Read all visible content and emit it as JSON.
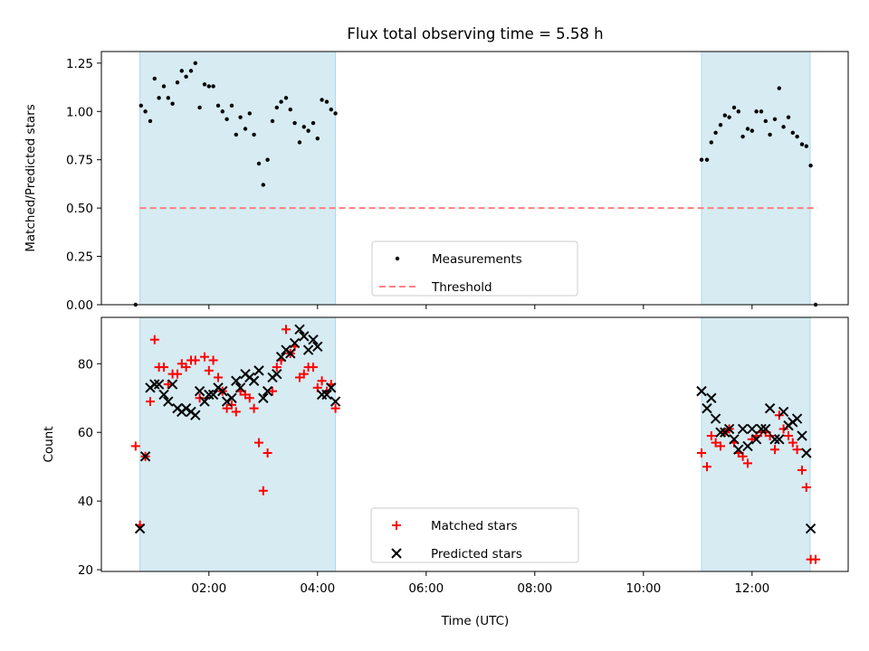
{
  "title": "Flux total observing time = 5.58 h",
  "xlabel": "Time (UTC)",
  "xticks": [
    {
      "h": 2,
      "label": "02:00"
    },
    {
      "h": 4,
      "label": "04:00"
    },
    {
      "h": 6,
      "label": "06:00"
    },
    {
      "h": 8,
      "label": "08:00"
    },
    {
      "h": 10,
      "label": "10:00"
    },
    {
      "h": 12,
      "label": "12:00"
    }
  ],
  "xlim": [
    0.02,
    13.77
  ],
  "colors": {
    "band": "#add8e6",
    "matched": "#ff0000",
    "predicted": "#000000",
    "threshold": "#ff7f7f",
    "measure": "#000000"
  },
  "chart_data": [
    {
      "type": "scatter",
      "ylabel": "Matched/Predicted stars",
      "ylim": [
        0,
        1.31
      ],
      "yticks": [
        "0.00",
        "0.25",
        "0.50",
        "0.75",
        "1.00",
        "1.25"
      ],
      "bands": [
        [
          0.73,
          4.33
        ],
        [
          11.07,
          13.07
        ]
      ],
      "threshold": 0.5,
      "threshold_range": [
        0.73,
        13.2
      ],
      "legend": {
        "position": "lower center",
        "entries": [
          "Measurements",
          "Threshold"
        ]
      },
      "series": [
        {
          "name": "Measurements",
          "points": [
            [
              0.65,
              0.0
            ],
            [
              0.75,
              1.03
            ],
            [
              0.83,
              1.0
            ],
            [
              0.92,
              0.95
            ],
            [
              1.0,
              1.17
            ],
            [
              1.08,
              1.07
            ],
            [
              1.17,
              1.13
            ],
            [
              1.25,
              1.07
            ],
            [
              1.33,
              1.04
            ],
            [
              1.42,
              1.15
            ],
            [
              1.5,
              1.21
            ],
            [
              1.58,
              1.18
            ],
            [
              1.67,
              1.21
            ],
            [
              1.75,
              1.25
            ],
            [
              1.83,
              1.02
            ],
            [
              1.92,
              1.14
            ],
            [
              2.0,
              1.13
            ],
            [
              2.08,
              1.13
            ],
            [
              2.17,
              1.03
            ],
            [
              2.25,
              1.0
            ],
            [
              2.33,
              0.96
            ],
            [
              2.42,
              1.03
            ],
            [
              2.5,
              0.88
            ],
            [
              2.58,
              0.97
            ],
            [
              2.67,
              0.91
            ],
            [
              2.75,
              0.99
            ],
            [
              2.83,
              0.88
            ],
            [
              2.92,
              0.73
            ],
            [
              3.0,
              0.62
            ],
            [
              3.08,
              0.75
            ],
            [
              3.17,
              0.95
            ],
            [
              3.25,
              1.02
            ],
            [
              3.33,
              1.05
            ],
            [
              3.42,
              1.07
            ],
            [
              3.5,
              1.01
            ],
            [
              3.58,
              0.94
            ],
            [
              3.67,
              0.84
            ],
            [
              3.75,
              0.92
            ],
            [
              3.83,
              0.9
            ],
            [
              3.92,
              0.94
            ],
            [
              4.0,
              0.86
            ],
            [
              4.08,
              1.06
            ],
            [
              4.17,
              1.05
            ],
            [
              4.25,
              1.01
            ],
            [
              4.33,
              0.99
            ],
            [
              11.07,
              0.75
            ],
            [
              11.17,
              0.75
            ],
            [
              11.25,
              0.84
            ],
            [
              11.33,
              0.89
            ],
            [
              11.42,
              0.93
            ],
            [
              11.5,
              0.98
            ],
            [
              11.58,
              0.97
            ],
            [
              11.67,
              1.02
            ],
            [
              11.75,
              1.0
            ],
            [
              11.83,
              0.87
            ],
            [
              11.92,
              0.91
            ],
            [
              12.0,
              0.9
            ],
            [
              12.08,
              1.0
            ],
            [
              12.17,
              1.0
            ],
            [
              12.25,
              0.95
            ],
            [
              12.33,
              0.88
            ],
            [
              12.42,
              0.96
            ],
            [
              12.5,
              1.12
            ],
            [
              12.58,
              0.92
            ],
            [
              12.67,
              0.97
            ],
            [
              12.75,
              0.89
            ],
            [
              12.83,
              0.87
            ],
            [
              12.92,
              0.83
            ],
            [
              13.0,
              0.82
            ],
            [
              13.08,
              0.72
            ],
            [
              13.17,
              0.0
            ]
          ]
        }
      ]
    },
    {
      "type": "scatter",
      "ylabel": "Count",
      "ylim": [
        19.5,
        93.5
      ],
      "yticks": [
        "20",
        "40",
        "60",
        "80"
      ],
      "bands": [
        [
          0.73,
          4.33
        ],
        [
          11.07,
          13.07
        ]
      ],
      "legend": {
        "position": "lower center",
        "entries": [
          "Matched stars",
          "Predicted stars"
        ]
      },
      "series": [
        {
          "name": "Matched stars",
          "marker": "plus",
          "points": [
            [
              0.65,
              56
            ],
            [
              0.73,
              33
            ],
            [
              0.83,
              53
            ],
            [
              0.92,
              69
            ],
            [
              1.0,
              87
            ],
            [
              1.08,
              79
            ],
            [
              1.17,
              79
            ],
            [
              1.25,
              74
            ],
            [
              1.33,
              77
            ],
            [
              1.42,
              77
            ],
            [
              1.5,
              80
            ],
            [
              1.58,
              79
            ],
            [
              1.67,
              81
            ],
            [
              1.75,
              81
            ],
            [
              1.83,
              70
            ],
            [
              1.92,
              82
            ],
            [
              2.0,
              78
            ],
            [
              2.08,
              81
            ],
            [
              2.17,
              76
            ],
            [
              2.25,
              72
            ],
            [
              2.33,
              67
            ],
            [
              2.42,
              68
            ],
            [
              2.5,
              66
            ],
            [
              2.58,
              72
            ],
            [
              2.67,
              71
            ],
            [
              2.75,
              70
            ],
            [
              2.83,
              67
            ],
            [
              2.92,
              57
            ],
            [
              3.0,
              43
            ],
            [
              3.08,
              54
            ],
            [
              3.17,
              72
            ],
            [
              3.25,
              79
            ],
            [
              3.33,
              81
            ],
            [
              3.42,
              90
            ],
            [
              3.5,
              83
            ],
            [
              3.58,
              85
            ],
            [
              3.67,
              76
            ],
            [
              3.75,
              77
            ],
            [
              3.83,
              79
            ],
            [
              3.92,
              79
            ],
            [
              4.0,
              73
            ],
            [
              4.08,
              75
            ],
            [
              4.17,
              72
            ],
            [
              4.25,
              74
            ],
            [
              4.33,
              67
            ],
            [
              11.07,
              54
            ],
            [
              11.17,
              50
            ],
            [
              11.25,
              59
            ],
            [
              11.33,
              57
            ],
            [
              11.42,
              56
            ],
            [
              11.5,
              60
            ],
            [
              11.58,
              61
            ],
            [
              11.67,
              57
            ],
            [
              11.75,
              54
            ],
            [
              11.83,
              53
            ],
            [
              11.92,
              51
            ],
            [
              12.0,
              58
            ],
            [
              12.08,
              59
            ],
            [
              12.17,
              60
            ],
            [
              12.25,
              60
            ],
            [
              12.33,
              59
            ],
            [
              12.42,
              55
            ],
            [
              12.5,
              65
            ],
            [
              12.58,
              61
            ],
            [
              12.67,
              59
            ],
            [
              12.75,
              57
            ],
            [
              12.83,
              55
            ],
            [
              12.92,
              49
            ],
            [
              13.0,
              44
            ],
            [
              13.08,
              23
            ],
            [
              13.17,
              23
            ]
          ]
        },
        {
          "name": "Predicted stars",
          "marker": "x",
          "points": [
            [
              0.73,
              32
            ],
            [
              0.83,
              53
            ],
            [
              0.92,
              73
            ],
            [
              1.0,
              74
            ],
            [
              1.08,
              74
            ],
            [
              1.17,
              71
            ],
            [
              1.25,
              69
            ],
            [
              1.33,
              74
            ],
            [
              1.42,
              67
            ],
            [
              1.5,
              66
            ],
            [
              1.58,
              67
            ],
            [
              1.67,
              66
            ],
            [
              1.75,
              65
            ],
            [
              1.83,
              72
            ],
            [
              1.92,
              69
            ],
            [
              2.0,
              71
            ],
            [
              2.08,
              71
            ],
            [
              2.17,
              73
            ],
            [
              2.25,
              72
            ],
            [
              2.33,
              69
            ],
            [
              2.42,
              70
            ],
            [
              2.5,
              75
            ],
            [
              2.58,
              73
            ],
            [
              2.67,
              77
            ],
            [
              2.75,
              76
            ],
            [
              2.83,
              75
            ],
            [
              2.92,
              78
            ],
            [
              3.0,
              70
            ],
            [
              3.08,
              72
            ],
            [
              3.17,
              76
            ],
            [
              3.25,
              77
            ],
            [
              3.33,
              82
            ],
            [
              3.42,
              84
            ],
            [
              3.5,
              83
            ],
            [
              3.58,
              86
            ],
            [
              3.67,
              90
            ],
            [
              3.75,
              88
            ],
            [
              3.83,
              84
            ],
            [
              3.92,
              87
            ],
            [
              4.0,
              85
            ],
            [
              4.08,
              71
            ],
            [
              4.17,
              71
            ],
            [
              4.25,
              73
            ],
            [
              4.33,
              69
            ],
            [
              11.07,
              72
            ],
            [
              11.17,
              67
            ],
            [
              11.25,
              70
            ],
            [
              11.33,
              64
            ],
            [
              11.42,
              60
            ],
            [
              11.5,
              60
            ],
            [
              11.58,
              61
            ],
            [
              11.67,
              58
            ],
            [
              11.75,
              55
            ],
            [
              11.83,
              61
            ],
            [
              11.92,
              56
            ],
            [
              12.0,
              61
            ],
            [
              12.08,
              58
            ],
            [
              12.17,
              61
            ],
            [
              12.25,
              61
            ],
            [
              12.33,
              67
            ],
            [
              12.42,
              58
            ],
            [
              12.5,
              58
            ],
            [
              12.58,
              66
            ],
            [
              12.67,
              62
            ],
            [
              12.75,
              63
            ],
            [
              12.83,
              64
            ],
            [
              12.92,
              59
            ],
            [
              13.0,
              54
            ],
            [
              13.08,
              32
            ]
          ]
        }
      ]
    }
  ]
}
